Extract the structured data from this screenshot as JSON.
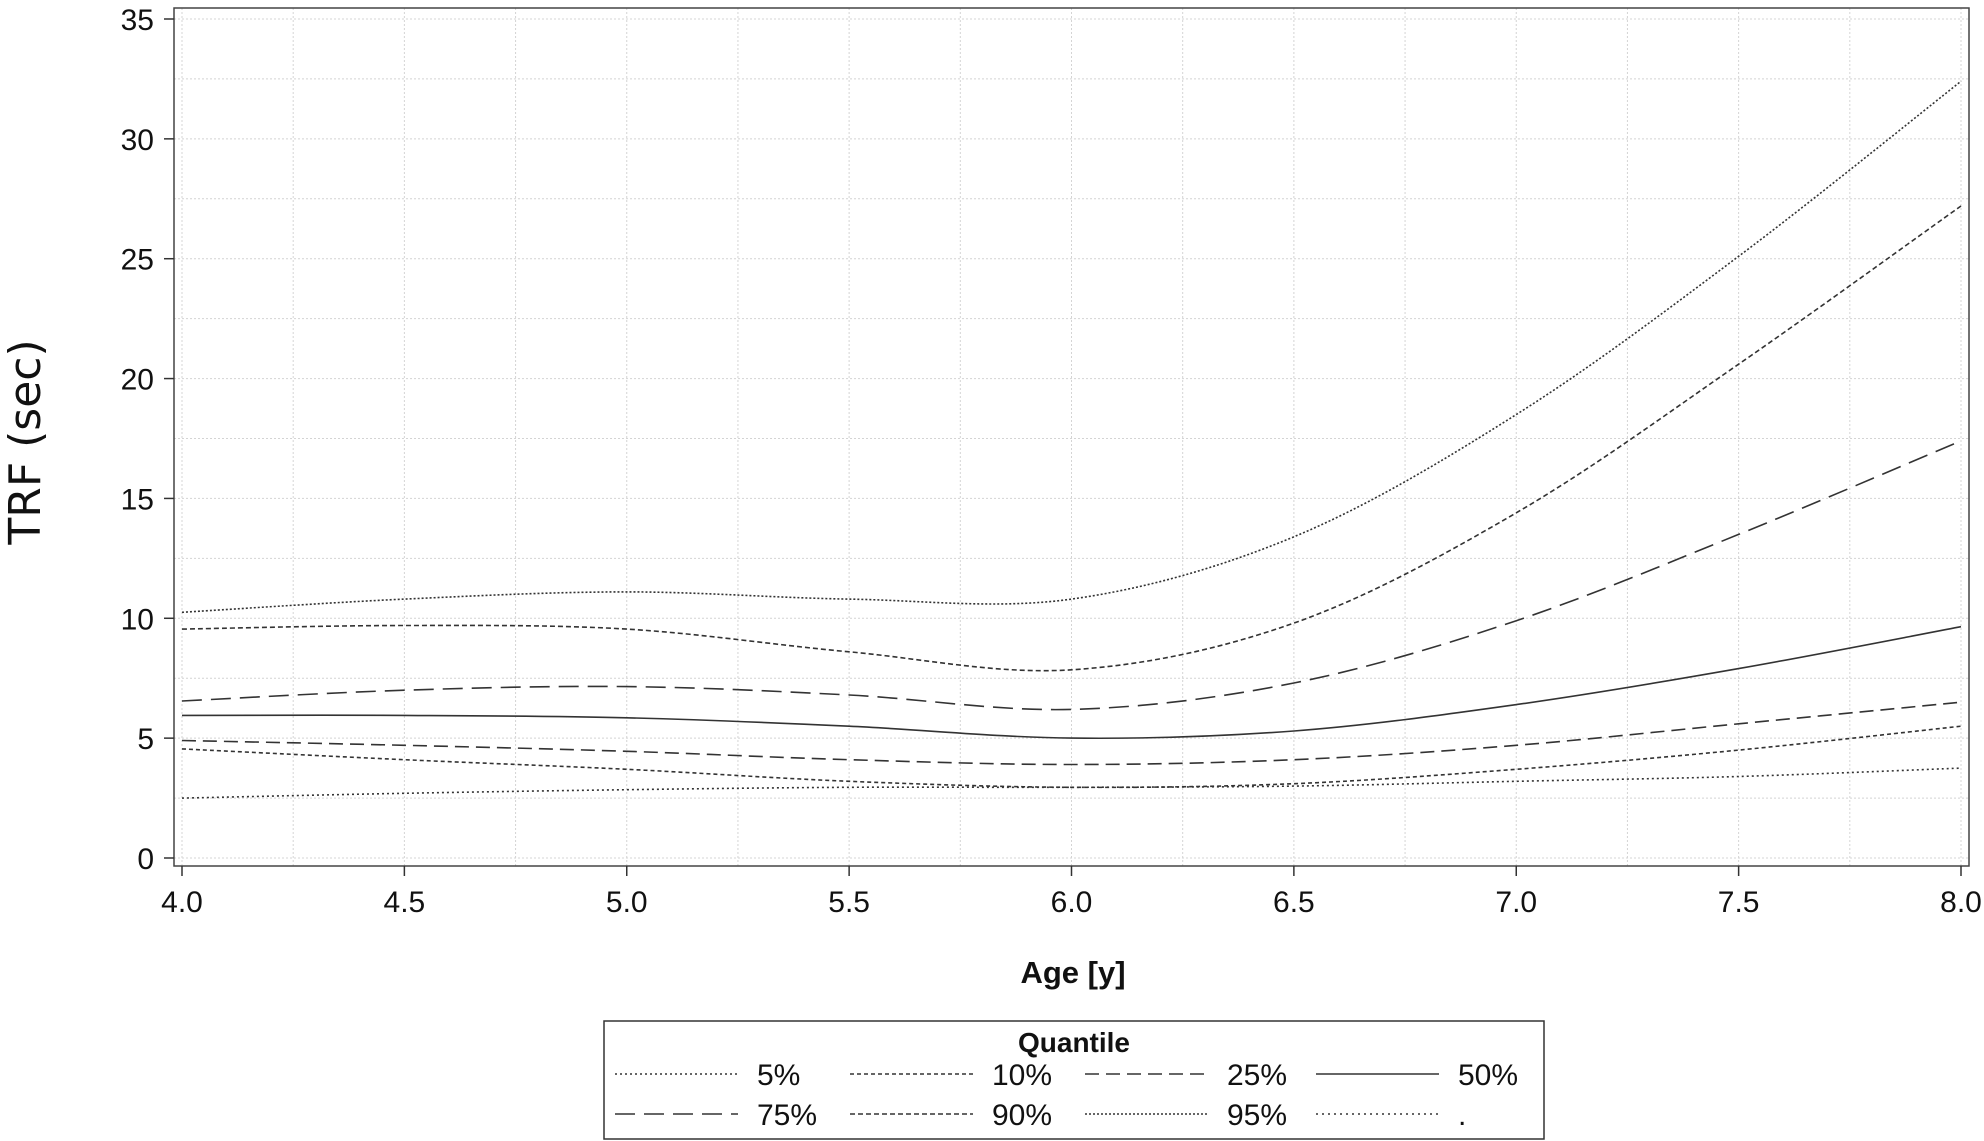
{
  "chart_data": {
    "type": "line",
    "xlabel": "Age [y]",
    "ylabel": "TRF (sec)",
    "xlim": [
      4.0,
      8.0
    ],
    "ylim": [
      0,
      35
    ],
    "x_ticks": [
      "4.0",
      "4.5",
      "5.0",
      "5.5",
      "6.0",
      "6.5",
      "7.0",
      "7.5",
      "8.0"
    ],
    "y_ticks": [
      "0",
      "5",
      "10",
      "15",
      "20",
      "25",
      "30",
      "35"
    ],
    "grid": true,
    "legend_title": "Quantile",
    "legend_position": "bottom",
    "x": [
      4.0,
      4.5,
      5.0,
      5.5,
      6.0,
      6.5,
      7.0,
      7.5,
      8.0
    ],
    "series": [
      {
        "name": "5%",
        "dash": "2,3",
        "values": [
          2.5,
          2.7,
          2.85,
          2.95,
          2.95,
          3.0,
          3.2,
          3.4,
          3.75
        ]
      },
      {
        "name": "10%",
        "dash": "4,3",
        "values": [
          4.55,
          4.1,
          3.7,
          3.2,
          2.95,
          3.1,
          3.7,
          4.5,
          5.5
        ]
      },
      {
        "name": "25%",
        "dash": "14,7",
        "values": [
          4.9,
          4.7,
          4.45,
          4.1,
          3.9,
          4.1,
          4.7,
          5.6,
          6.5
        ]
      },
      {
        "name": "50%",
        "dash": "",
        "values": [
          5.95,
          5.95,
          5.85,
          5.5,
          5.0,
          5.3,
          6.4,
          7.9,
          9.65
        ]
      },
      {
        "name": "75%",
        "dash": "20,9",
        "values": [
          6.55,
          7.0,
          7.15,
          6.8,
          6.2,
          7.3,
          9.9,
          13.5,
          17.4
        ]
      },
      {
        "name": "90%",
        "dash": "5,3",
        "values": [
          9.55,
          9.7,
          9.55,
          8.6,
          7.85,
          9.8,
          14.4,
          20.6,
          27.2
        ]
      },
      {
        "name": "95%",
        "dash": "2,2",
        "values": [
          10.25,
          10.8,
          11.1,
          10.8,
          10.8,
          13.4,
          18.5,
          25.1,
          32.4
        ]
      },
      {
        "name": ".",
        "dash": "2,4",
        "values": [
          null,
          null,
          null,
          null,
          null,
          null,
          null,
          null,
          null
        ]
      }
    ]
  }
}
